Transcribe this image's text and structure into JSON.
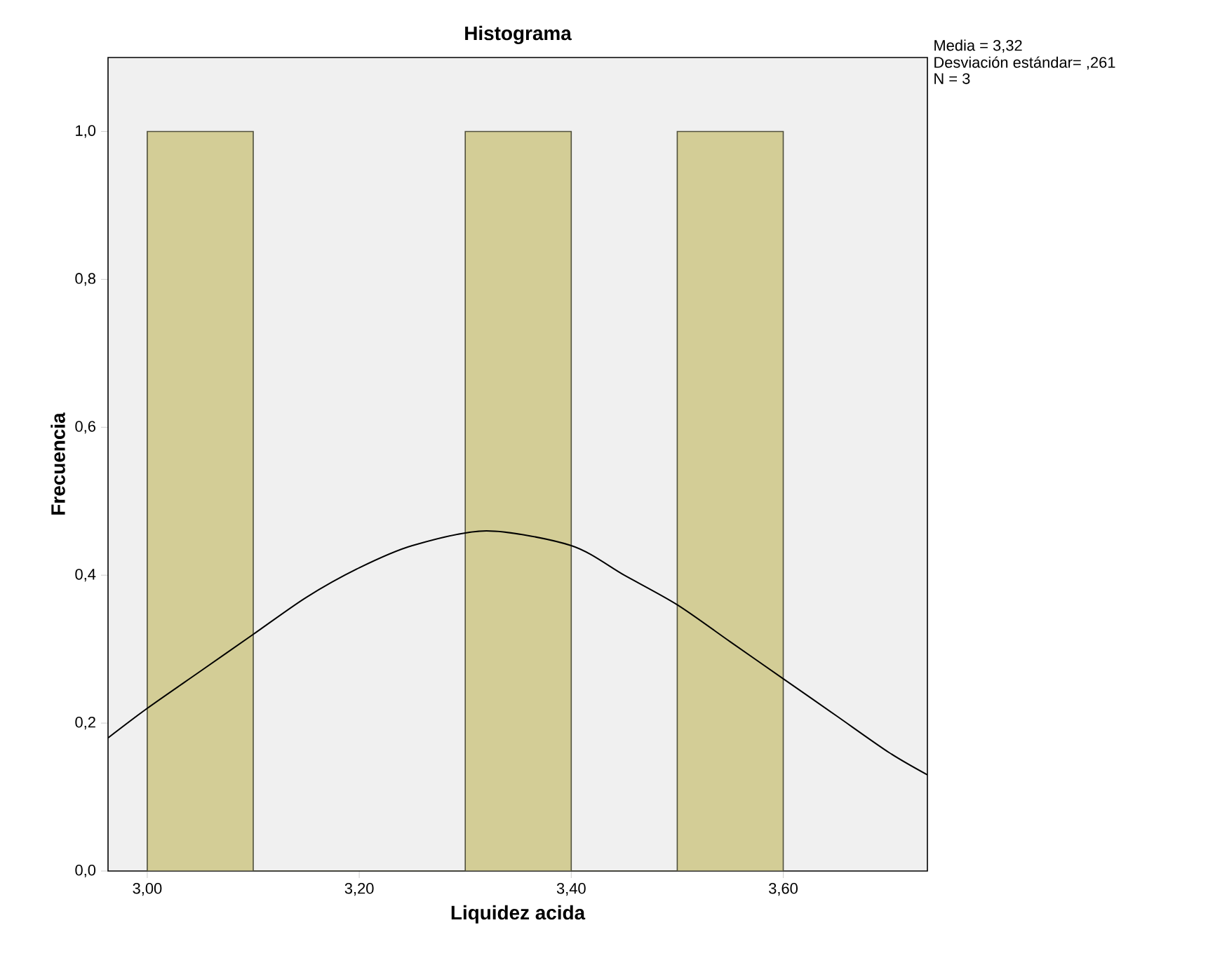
{
  "chart_data": {
    "type": "histogram",
    "title": "Histograma",
    "xlabel": "Liquidez acida",
    "ylabel": "Frecuencia",
    "bins": [
      3.0,
      3.1,
      3.2,
      3.3,
      3.4,
      3.5,
      3.6
    ],
    "values": [
      1,
      0,
      0,
      1,
      0,
      1
    ],
    "color": "#d3cd96",
    "series": [
      {
        "type": "line",
        "color": "#000000",
        "x": [
          2.963,
          3.0,
          3.05,
          3.1,
          3.15,
          3.2,
          3.25,
          3.32,
          3.4,
          3.45,
          3.5,
          3.55,
          3.6,
          3.65,
          3.7,
          3.736
        ],
        "values": [
          0.18,
          0.22,
          0.27,
          0.32,
          0.37,
          0.41,
          0.44,
          0.46,
          0.44,
          0.4,
          0.36,
          0.31,
          0.26,
          0.21,
          0.16,
          0.13
        ]
      }
    ],
    "xlim": [
      2.963,
      3.736
    ],
    "ylim": [
      0,
      1.1
    ],
    "xticks": [
      {
        "value": 3.0,
        "label": "3,00"
      },
      {
        "value": 3.2,
        "label": "3,20"
      },
      {
        "value": 3.4,
        "label": "3,40"
      },
      {
        "value": 3.6,
        "label": "3,60"
      }
    ],
    "yticks": [
      {
        "value": 0,
        "label": "0,0"
      },
      {
        "value": 0.2,
        "label": "0,2"
      },
      {
        "value": 0.4,
        "label": "0,4"
      },
      {
        "value": 0.6,
        "label": "0,6"
      },
      {
        "value": 0.8,
        "label": "0,8"
      },
      {
        "value": 1.0,
        "label": "1,0"
      }
    ],
    "grid": false,
    "marker": "none",
    "line_style": "solid",
    "annotations": [
      "Media = 3,32",
      "Desviación estándar= ,261",
      "N = 3"
    ]
  }
}
